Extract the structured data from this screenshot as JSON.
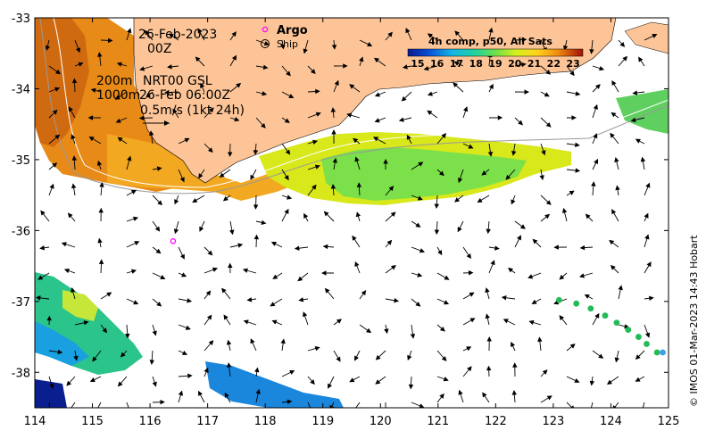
{
  "map": {
    "date": "26-Feb-2023",
    "hour": "00Z",
    "depth_short": "200m",
    "depth_long": "1000m",
    "product": "NRT00 GSL",
    "product_time": "26-Feb 06:00Z",
    "scale_label": "0.5m/s (1kt 24h)",
    "credit": "© IMOS 01-Mar-2023 14:43 Hobart"
  },
  "legend": {
    "argo_label": "Argo",
    "ship_label": "Ship",
    "colorbar_title": "4h comp, p50, All Sats",
    "colorbar_ticks": [
      "15",
      "16",
      "17",
      "18",
      "19",
      "20",
      "21",
      "22",
      "23"
    ],
    "colorbar_min": 14.5,
    "colorbar_max": 23.5,
    "colors": {
      "land": "#fdc597",
      "argo": "#ff00ff",
      "ship": "#000000"
    }
  },
  "axes": {
    "lon_ticks": [
      "114",
      "115",
      "116",
      "117",
      "118",
      "119",
      "120",
      "121",
      "122",
      "123",
      "124",
      "125"
    ],
    "lat_ticks": [
      "-33",
      "-34",
      "-35",
      "-36",
      "-37",
      "-38"
    ],
    "lon_range": [
      114,
      125
    ],
    "lat_range": [
      -38.5,
      -33
    ]
  },
  "argo_float": {
    "lon": 116.4,
    "lat": -36.15
  },
  "drifter_track": {
    "lon": [
      123.1,
      123.4,
      123.65,
      123.9,
      124.1,
      124.3,
      124.48,
      124.62,
      124.8,
      124.9
    ],
    "lat": [
      -36.98,
      -37.03,
      -37.1,
      -37.2,
      -37.3,
      -37.4,
      -37.5,
      -37.6,
      -37.72,
      -37.72
    ],
    "color": "#22bb55"
  },
  "current_field_note": "vector arrows"
}
